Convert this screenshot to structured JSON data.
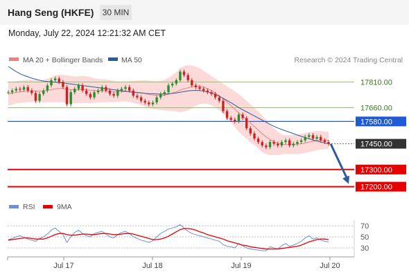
{
  "header": {
    "title": "Hang Seng (HKFE)",
    "timeframe": "30 MIN",
    "datetime": "Monday, July 22, 2024 12:21:32 AM CET"
  },
  "colors": {
    "candle_up": "#2a8f2a",
    "candle_down": "#cc2222",
    "ma20": "#f08080",
    "bollinger_fill": "#fbd3d3",
    "ma50": "#2c5b9c",
    "support": "#e60000",
    "pivot": "#1e5ad7",
    "resistance": "#8cc66a",
    "rsi": "#6f8fd8",
    "rsi_ma": "#e60000",
    "arrow": "#2c5b9c",
    "current_price_bg": "#333333"
  },
  "chart_data": [
    {
      "type": "candlestick",
      "legend": [
        {
          "label": "MA 20 + Bollinger Bands",
          "color": "#f08080"
        },
        {
          "label": "MA 50",
          "color": "#2c5b9c"
        }
      ],
      "watermark": "Research © 2024 Trading Central",
      "x_tick_labels": [
        "Jul 17",
        "Jul 18",
        "Jul 19",
        "Jul 20"
      ],
      "ylim": [
        17150,
        17900
      ],
      "levels": [
        {
          "value": 17810.0,
          "label": "17810.00",
          "kind": "resistance"
        },
        {
          "value": 17660.0,
          "label": "17660.00",
          "kind": "resistance"
        },
        {
          "value": 17580.0,
          "label": "17580.00",
          "kind": "pivot"
        },
        {
          "value": 17450.0,
          "label": "17450.00",
          "kind": "current"
        },
        {
          "value": 17300.0,
          "label": "17300.00",
          "kind": "support"
        },
        {
          "value": 17200.0,
          "label": "17200.00",
          "kind": "support"
        }
      ],
      "forecast_arrow": {
        "from_value": 17450,
        "to_value": 17200
      },
      "close_series": [
        17750,
        17760,
        17770,
        17765,
        17780,
        17760,
        17745,
        17700,
        17740,
        17760,
        17790,
        17820,
        17830,
        17810,
        17780,
        17680,
        17750,
        17770,
        17790,
        17760,
        17740,
        17720,
        17750,
        17760,
        17780,
        17760,
        17740,
        17730,
        17760,
        17770,
        17780,
        17760,
        17730,
        17720,
        17700,
        17690,
        17680,
        17690,
        17720,
        17740,
        17750,
        17790,
        17800,
        17820,
        17870,
        17850,
        17820,
        17790,
        17780,
        17770,
        17760,
        17750,
        17740,
        17720,
        17700,
        17640,
        17600,
        17590,
        17580,
        17620,
        17600,
        17540,
        17510,
        17480,
        17460,
        17440,
        17430,
        17460,
        17450,
        17440,
        17460,
        17470,
        17440,
        17450,
        17460,
        17470,
        17490,
        17500,
        17480,
        17490,
        17470,
        17460,
        17450
      ],
      "ma20_series": [
        17740,
        17745,
        17750,
        17752,
        17755,
        17757,
        17758,
        17757,
        17756,
        17757,
        17760,
        17765,
        17770,
        17772,
        17772,
        17768,
        17765,
        17764,
        17765,
        17766,
        17765,
        17762,
        17760,
        17759,
        17759,
        17758,
        17756,
        17754,
        17753,
        17753,
        17754,
        17754,
        17752,
        17750,
        17747,
        17743,
        17738,
        17734,
        17732,
        17731,
        17733,
        17738,
        17745,
        17752,
        17762,
        17770,
        17776,
        17781,
        17786,
        17785,
        17780,
        17771,
        17760,
        17745,
        17730,
        17712,
        17693,
        17672,
        17651,
        17630,
        17610,
        17590,
        17570,
        17550,
        17530,
        17508,
        17490,
        17474,
        17462,
        17452,
        17447,
        17445,
        17445,
        17446,
        17448,
        17450,
        17454,
        17460,
        17464,
        17468,
        17470,
        17470,
        17470
      ],
      "bb_upper": [
        17810,
        17812,
        17815,
        17818,
        17820,
        17822,
        17823,
        17822,
        17820,
        17822,
        17828,
        17838,
        17848,
        17852,
        17852,
        17848,
        17845,
        17842,
        17843,
        17845,
        17843,
        17838,
        17832,
        17828,
        17826,
        17824,
        17820,
        17816,
        17812,
        17810,
        17812,
        17815,
        17816,
        17818,
        17820,
        17820,
        17818,
        17816,
        17815,
        17816,
        17822,
        17835,
        17850,
        17866,
        17890,
        17902,
        17908,
        17906,
        17900,
        17890,
        17876,
        17860,
        17845,
        17830,
        17815,
        17800,
        17785,
        17770,
        17755,
        17740,
        17720,
        17700,
        17680,
        17660,
        17638,
        17615,
        17590,
        17565,
        17540,
        17520,
        17505,
        17500,
        17500,
        17502,
        17505,
        17508,
        17512,
        17518,
        17522,
        17524,
        17524,
        17522,
        17520
      ],
      "bb_lower": [
        17670,
        17678,
        17685,
        17688,
        17690,
        17692,
        17693,
        17692,
        17692,
        17692,
        17692,
        17692,
        17692,
        17692,
        17692,
        17688,
        17685,
        17686,
        17687,
        17687,
        17687,
        17686,
        17688,
        17690,
        17692,
        17692,
        17692,
        17692,
        17694,
        17696,
        17696,
        17693,
        17688,
        17682,
        17674,
        17666,
        17658,
        17652,
        17649,
        17646,
        17644,
        17641,
        17640,
        17638,
        17634,
        17638,
        17644,
        17656,
        17672,
        17680,
        17684,
        17682,
        17675,
        17660,
        17645,
        17624,
        17601,
        17574,
        17547,
        17520,
        17500,
        17480,
        17460,
        17440,
        17422,
        17401,
        17390,
        17383,
        17384,
        17384,
        17389,
        17390,
        17390,
        17390,
        17391,
        17392,
        17396,
        17402,
        17406,
        17412,
        17416,
        17418,
        17420
      ],
      "ma50_series": [
        17900,
        17885,
        17870,
        17858,
        17848,
        17840,
        17832,
        17826,
        17820,
        17815,
        17812,
        17810,
        17808,
        17806,
        17804,
        17801,
        17798,
        17795,
        17792,
        17789,
        17786,
        17783,
        17780,
        17777,
        17774,
        17771,
        17768,
        17765,
        17762,
        17759,
        17756,
        17753,
        17750,
        17748,
        17746,
        17744,
        17742,
        17741,
        17740,
        17740,
        17740,
        17741,
        17743,
        17746,
        17750,
        17754,
        17758,
        17760,
        17761,
        17760,
        17757,
        17752,
        17745,
        17737,
        17727,
        17715,
        17702,
        17689,
        17675,
        17661,
        17648,
        17636,
        17624,
        17612,
        17600,
        17588,
        17575,
        17563,
        17552,
        17542,
        17533,
        17525,
        17517,
        17509,
        17501,
        17493,
        17486,
        17479,
        17472,
        17466,
        17460,
        17455,
        17450
      ]
    },
    {
      "type": "line",
      "legend": [
        {
          "label": "RSI",
          "color": "#6f8fd8"
        },
        {
          "label": "9MA",
          "color": "#e60000"
        }
      ],
      "y_tick_labels": [
        "70",
        "50",
        "30"
      ],
      "y_ticks": [
        70,
        50,
        30
      ],
      "ylim": [
        20,
        80
      ],
      "rsi_series": [
        45,
        47,
        50,
        52,
        49,
        46,
        44,
        42,
        47,
        50,
        55,
        62,
        66,
        60,
        54,
        40,
        50,
        58,
        62,
        56,
        52,
        50,
        56,
        58,
        60,
        55,
        50,
        48,
        54,
        58,
        60,
        56,
        50,
        47,
        44,
        42,
        40,
        43,
        50,
        56,
        60,
        64,
        66,
        68,
        72,
        66,
        60,
        56,
        54,
        52,
        50,
        48,
        46,
        44,
        42,
        36,
        33,
        32,
        30,
        38,
        34,
        30,
        28,
        27,
        26,
        25,
        25,
        32,
        30,
        28,
        34,
        38,
        33,
        35,
        38,
        42,
        48,
        52,
        46,
        48,
        44,
        42,
        41
      ],
      "rsi_ma_series": [
        44,
        45,
        46,
        47,
        48,
        48,
        47,
        46,
        46,
        46,
        48,
        51,
        54,
        56,
        56,
        54,
        53,
        53,
        54,
        55,
        55,
        54,
        54,
        55,
        56,
        56,
        55,
        54,
        54,
        55,
        56,
        56,
        55,
        53,
        51,
        49,
        47,
        45,
        45,
        46,
        48,
        51,
        55,
        59,
        63,
        65,
        65,
        64,
        62,
        59,
        57,
        54,
        52,
        50,
        48,
        46,
        43,
        41,
        39,
        37,
        35,
        34,
        32,
        31,
        30,
        29,
        28,
        28,
        28,
        28,
        29,
        30,
        31,
        32,
        33,
        35,
        38,
        41,
        43,
        45,
        46,
        46,
        45
      ]
    }
  ]
}
